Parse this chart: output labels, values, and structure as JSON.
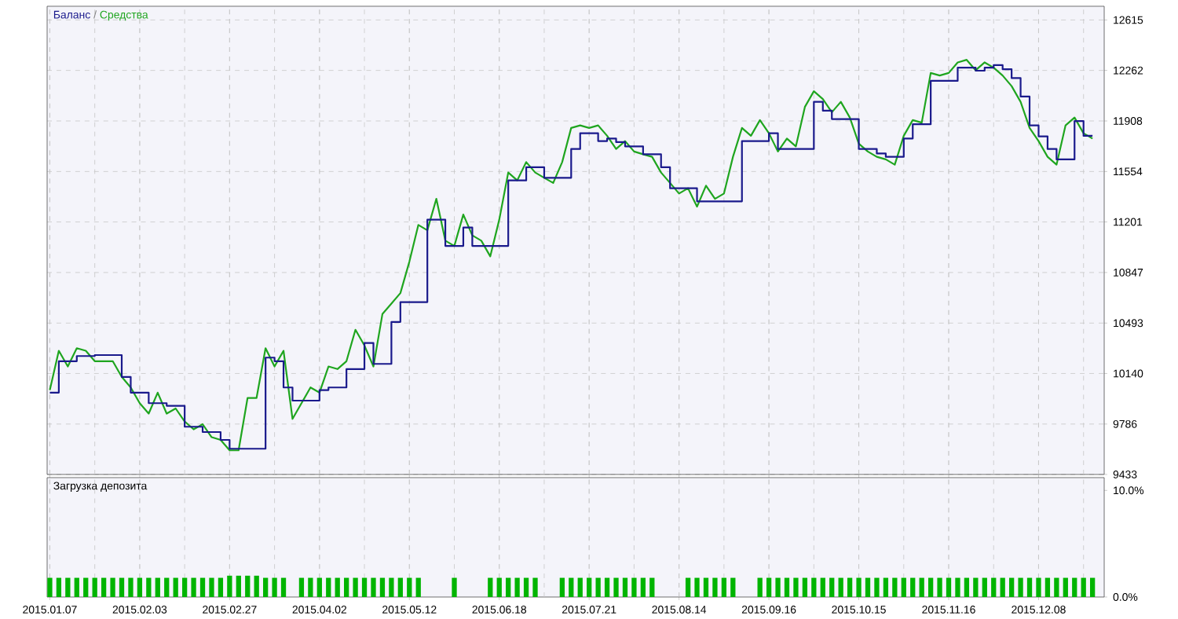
{
  "chart_data": [
    {
      "type": "line",
      "categories": [
        "2015.01.07",
        null,
        null,
        null,
        null,
        null,
        null,
        null,
        null,
        null,
        "2015.02.03",
        null,
        null,
        null,
        null,
        null,
        null,
        null,
        null,
        null,
        "2015.02.27",
        null,
        null,
        null,
        null,
        null,
        null,
        null,
        null,
        null,
        "2015.04.02",
        null,
        null,
        null,
        null,
        null,
        null,
        null,
        null,
        null,
        "2015.05.12",
        null,
        null,
        null,
        null,
        null,
        null,
        null,
        null,
        null,
        "2015.06.18",
        null,
        null,
        null,
        null,
        null,
        null,
        null,
        null,
        null,
        "2015.07.21",
        null,
        null,
        null,
        null,
        null,
        null,
        null,
        null,
        null,
        "2015.08.14",
        null,
        null,
        null,
        null,
        null,
        null,
        null,
        null,
        null,
        "2015.09.16",
        null,
        null,
        null,
        null,
        null,
        null,
        null,
        null,
        null,
        "2015.10.15",
        null,
        null,
        null,
        null,
        null,
        null,
        null,
        null,
        null,
        "2015.11.16",
        null,
        null,
        null,
        null,
        null,
        null,
        null,
        null,
        null,
        "2015.12.08",
        null,
        null,
        null,
        null,
        null,
        null
      ],
      "series": [
        {
          "name": "Средства",
          "type": "line",
          "color": "#1fa51f",
          "values": [
            10024,
            10299,
            10189,
            10317,
            10299,
            10226,
            10226,
            10226,
            10116,
            10042,
            9932,
            9859,
            10006,
            9859,
            9895,
            9804,
            9749,
            9785,
            9694,
            9675,
            9602,
            9602,
            9969,
            9969,
            10317,
            10189,
            10299,
            9822,
            9932,
            10042,
            10006,
            10189,
            10171,
            10226,
            10446,
            10336,
            10189,
            10556,
            10629,
            10703,
            10923,
            11180,
            11143,
            11363,
            11070,
            11033,
            11253,
            11107,
            11070,
            10960,
            11217,
            11547,
            11492,
            11620,
            11547,
            11510,
            11474,
            11620,
            11859,
            11877,
            11859,
            11877,
            11804,
            11712,
            11767,
            11694,
            11675,
            11657,
            11547,
            11474,
            11400,
            11437,
            11308,
            11455,
            11363,
            11400,
            11657,
            11859,
            11804,
            11914,
            11822,
            11694,
            11785,
            11730,
            12006,
            12116,
            12061,
            11969,
            12042,
            11932,
            11749,
            11694,
            11657,
            11639,
            11602,
            11804,
            11914,
            11896,
            12244,
            12226,
            12244,
            12318,
            12336,
            12263,
            12318,
            12281,
            12226,
            12152,
            12042,
            11859,
            11767,
            11657,
            11602,
            11877,
            11932,
            11822,
            11785
          ]
        },
        {
          "name": "Баланс",
          "type": "step",
          "color": "#1a1a8c",
          "values": [
            10006,
            10226,
            10226,
            10262,
            10262,
            10269,
            10269,
            10269,
            10116,
            10006,
            10006,
            9932,
            9932,
            9914,
            9914,
            9767,
            9767,
            9730,
            9730,
            9675,
            9613,
            9613,
            9613,
            9613,
            10251,
            10226,
            10042,
            9950,
            9950,
            9950,
            10024,
            10042,
            10042,
            10171,
            10171,
            10354,
            10207,
            10207,
            10501,
            10640,
            10640,
            10640,
            11217,
            11217,
            11033,
            11033,
            11162,
            11033,
            11033,
            11033,
            11033,
            11492,
            11492,
            11584,
            11584,
            11510,
            11510,
            11510,
            11712,
            11822,
            11822,
            11767,
            11785,
            11760,
            11730,
            11730,
            11675,
            11675,
            11584,
            11437,
            11437,
            11437,
            11345,
            11345,
            11345,
            11345,
            11345,
            11767,
            11767,
            11767,
            11822,
            11712,
            11712,
            11712,
            11712,
            12042,
            11980,
            11921,
            11921,
            11921,
            11712,
            11712,
            11680,
            11657,
            11657,
            11785,
            11885,
            11885,
            12189,
            12189,
            12189,
            12281,
            12281,
            12260,
            12281,
            12299,
            12270,
            12208,
            12079,
            11877,
            11800,
            11712,
            11639,
            11639,
            11907,
            11804,
            11804
          ]
        }
      ],
      "ylim": [
        9433,
        12711
      ],
      "yticks": [
        9433,
        9786,
        10140,
        10493,
        10847,
        11201,
        11554,
        11908,
        12262,
        12615
      ],
      "grid": true,
      "legend": "top left",
      "annotations": [
        "/"
      ],
      "marker": "none",
      "tick_labels": "y"
    },
    {
      "type": "bar",
      "title": "Загрузка депозита",
      "categories": [
        "2015.01.07",
        null,
        null,
        null,
        null,
        null,
        null,
        null,
        null,
        null,
        "2015.02.03",
        null,
        null,
        null,
        null,
        null,
        null,
        null,
        null,
        null,
        "2015.02.27",
        null,
        null,
        null,
        null,
        null,
        null,
        null,
        null,
        null,
        "2015.04.02",
        null,
        null,
        null,
        null,
        null,
        null,
        null,
        null,
        null,
        "2015.05.12",
        null,
        null,
        null,
        null,
        null,
        null,
        null,
        null,
        null,
        "2015.06.18",
        null,
        null,
        null,
        null,
        null,
        null,
        null,
        null,
        null,
        "2015.07.21",
        null,
        null,
        null,
        null,
        null,
        null,
        null,
        null,
        null,
        "2015.08.14",
        null,
        null,
        null,
        null,
        null,
        null,
        null,
        null,
        null,
        "2015.09.16",
        null,
        null,
        null,
        null,
        null,
        null,
        null,
        null,
        null,
        "2015.10.15",
        null,
        null,
        null,
        null,
        null,
        null,
        null,
        null,
        null,
        "2015.11.16",
        null,
        null,
        null,
        null,
        null,
        null,
        null,
        null,
        null,
        "2015.12.08",
        null,
        null,
        null,
        null,
        null,
        null
      ],
      "color": "#00b400",
      "values": [
        1.8,
        1.8,
        1.8,
        1.8,
        1.8,
        1.8,
        1.8,
        1.8,
        1.8,
        1.8,
        1.8,
        1.8,
        1.8,
        1.8,
        1.8,
        1.8,
        1.8,
        1.8,
        1.8,
        1.8,
        2.0,
        2.0,
        2.0,
        2.0,
        1.8,
        1.8,
        1.8,
        null,
        1.8,
        1.8,
        1.8,
        1.8,
        1.8,
        1.8,
        1.8,
        1.8,
        1.8,
        1.8,
        1.8,
        1.8,
        1.8,
        1.8,
        null,
        null,
        null,
        1.8,
        null,
        null,
        null,
        1.8,
        1.8,
        1.8,
        1.8,
        1.8,
        1.8,
        null,
        null,
        1.8,
        1.8,
        1.8,
        1.8,
        1.8,
        1.8,
        1.8,
        1.8,
        1.8,
        1.8,
        1.8,
        null,
        null,
        null,
        1.8,
        1.8,
        1.8,
        1.8,
        1.8,
        1.8,
        null,
        null,
        1.8,
        1.8,
        1.8,
        1.8,
        1.8,
        1.8,
        1.8,
        1.8,
        1.8,
        1.8,
        1.8,
        1.8,
        1.8,
        1.8,
        1.8,
        1.8,
        1.8,
        1.8,
        1.8,
        1.8,
        1.8,
        1.8,
        1.8,
        1.8,
        1.8,
        1.8,
        1.8,
        1.8,
        1.8,
        1.8,
        1.8,
        1.8,
        1.8,
        1.8,
        1.8,
        1.8,
        1.8,
        1.8
      ],
      "ylim": [
        0,
        11.2
      ],
      "yticks": [
        {
          "value": 0,
          "label": "0.0%"
        },
        {
          "value": 10,
          "label": "10.0%"
        }
      ],
      "grid": "x"
    }
  ]
}
